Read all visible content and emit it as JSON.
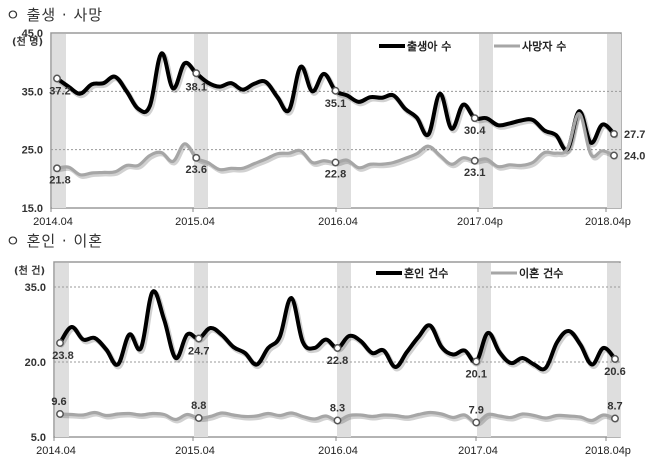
{
  "sections": [
    {
      "title": "ㅇ 출생 · 사망"
    },
    {
      "title": "ㅇ 혼인 · 이혼"
    }
  ],
  "chart_data": [
    {
      "type": "line",
      "title": "출생 · 사망",
      "unit": "(천 명)",
      "ylabel": "(천 명)",
      "ylim": [
        15.0,
        45.0
      ],
      "yticks": [
        "45.0",
        "35.0",
        "25.0",
        "15.0"
      ],
      "ytick_values": [
        45,
        35,
        25,
        15
      ],
      "xticks": [
        "2014.04",
        "2015.04",
        "2016.04",
        "2017.04p",
        "2018.04p"
      ],
      "x_start": "2014.04",
      "x_end": "2018.04",
      "grid": "dashed horizontal",
      "legend_position": "top-right inside",
      "highlight_bands": [
        "2014.04",
        "2015.04",
        "2016.04",
        "2017.04",
        "2018.04"
      ],
      "series": [
        {
          "name": "출생아 수",
          "color": "#000000",
          "values": [
            37.2,
            35.8,
            34.6,
            36.2,
            36.4,
            37.5,
            35.0,
            32.0,
            32.5,
            41.5,
            35.5,
            39.8,
            38.1,
            36.5,
            35.8,
            36.4,
            35.3,
            36.3,
            36.6,
            34.0,
            31.8,
            39.2,
            35.0,
            38.0,
            35.1,
            34.3,
            33.2,
            34.0,
            33.9,
            34.3,
            32.0,
            30.5,
            27.6,
            34.6,
            28.6,
            32.7,
            30.4,
            30.4,
            29.2,
            29.5,
            30.0,
            30.1,
            28.3,
            27.5,
            25.1,
            31.6,
            26.2,
            29.3,
            27.7
          ],
          "labels": [
            {
              "index": 0,
              "text": "37.2"
            },
            {
              "index": 12,
              "text": "38.1"
            },
            {
              "index": 24,
              "text": "35.1"
            },
            {
              "index": 36,
              "text": "30.4"
            },
            {
              "index": 48,
              "text": "27.7"
            }
          ]
        },
        {
          "name": "사망자 수",
          "color": "#a6a6a6",
          "values": [
            21.8,
            22.0,
            20.7,
            21.0,
            21.1,
            21.2,
            22.3,
            22.3,
            24.0,
            24.5,
            23.0,
            26.0,
            23.6,
            22.8,
            21.6,
            21.8,
            21.8,
            22.6,
            23.4,
            24.3,
            24.4,
            24.8,
            22.8,
            23.1,
            22.8,
            23.2,
            21.9,
            22.5,
            22.5,
            22.8,
            23.5,
            24.3,
            25.6,
            24.0,
            22.5,
            23.6,
            23.1,
            23.4,
            22.1,
            22.4,
            22.3,
            22.8,
            24.5,
            24.4,
            25.2,
            31.2,
            24.2,
            24.8,
            24.0
          ],
          "labels": [
            {
              "index": 0,
              "text": "21.8"
            },
            {
              "index": 12,
              "text": "23.6"
            },
            {
              "index": 24,
              "text": "22.8"
            },
            {
              "index": 36,
              "text": "23.1"
            },
            {
              "index": 48,
              "text": "24.0"
            }
          ]
        }
      ]
    },
    {
      "type": "line",
      "title": "혼인 · 이혼",
      "unit": "(천 건)",
      "ylabel": "(천 건)",
      "ylim": [
        5.0,
        40.0
      ],
      "yticks": [
        "35.0",
        "20.0",
        "5.0"
      ],
      "ytick_values": [
        35,
        20,
        5
      ],
      "xticks": [
        "2014.04",
        "2015.04",
        "2016.04",
        "2017.04",
        "2018.04p"
      ],
      "x_start": "2014.04",
      "x_end": "2018.04",
      "grid": "dashed horizontal",
      "legend_position": "top-right inside",
      "highlight_bands": [
        "2014.04",
        "2015.04",
        "2016.04",
        "2017.04",
        "2018.04"
      ],
      "series": [
        {
          "name": "혼인 건수",
          "color": "#000000",
          "values": [
            23.8,
            27.0,
            24.5,
            24.8,
            22.5,
            19.5,
            25.5,
            22.8,
            34.0,
            28.5,
            20.8,
            25.5,
            24.7,
            26.8,
            25.4,
            23.0,
            21.8,
            19.5,
            22.8,
            25.0,
            32.8,
            24.0,
            22.8,
            24.5,
            22.8,
            25.2,
            24.2,
            21.8,
            22.3,
            19.0,
            22.0,
            25.0,
            27.3,
            23.0,
            21.5,
            22.3,
            20.1,
            25.8,
            22.0,
            19.8,
            20.8,
            19.5,
            18.8,
            24.0,
            26.2,
            23.5,
            19.5,
            22.8,
            20.6
          ],
          "labels": [
            {
              "index": 0,
              "text": "23.8"
            },
            {
              "index": 12,
              "text": "24.7"
            },
            {
              "index": 24,
              "text": "22.8"
            },
            {
              "index": 36,
              "text": "20.1"
            },
            {
              "index": 48,
              "text": "20.6"
            }
          ]
        },
        {
          "name": "이혼 건수",
          "color": "#a6a6a6",
          "values": [
            9.6,
            9.5,
            9.4,
            9.9,
            9.3,
            9.6,
            9.7,
            9.4,
            9.7,
            9.5,
            8.5,
            9.5,
            8.8,
            9.1,
            9.8,
            9.4,
            9.1,
            9.2,
            9.7,
            9.3,
            9.8,
            9.1,
            8.6,
            9.2,
            8.3,
            9.3,
            9.4,
            9.1,
            9.4,
            9.3,
            9.0,
            9.5,
            9.9,
            9.6,
            8.9,
            9.4,
            7.9,
            9.5,
            9.2,
            8.9,
            9.6,
            9.3,
            8.8,
            9.3,
            9.2,
            9.0,
            8.3,
            9.4,
            8.7
          ],
          "labels": [
            {
              "index": 0,
              "text": "9.6"
            },
            {
              "index": 12,
              "text": "8.8"
            },
            {
              "index": 24,
              "text": "8.3"
            },
            {
              "index": 36,
              "text": "7.9"
            },
            {
              "index": 48,
              "text": "8.7"
            }
          ]
        }
      ]
    }
  ]
}
